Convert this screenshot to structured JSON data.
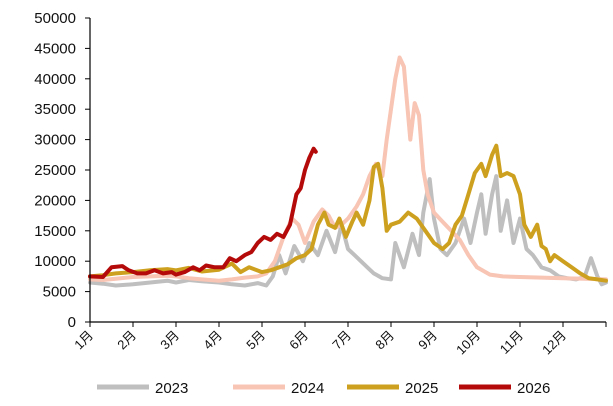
{
  "chart_data": {
    "type": "line",
    "title": "",
    "xlabel": "",
    "ylabel": "",
    "ylim": [
      0,
      50000
    ],
    "y_ticks": [
      0,
      5000,
      10000,
      15000,
      20000,
      25000,
      30000,
      35000,
      40000,
      45000,
      50000
    ],
    "x_ticks": [
      "1月",
      "2月",
      "3月",
      "4月",
      "5月",
      "6月",
      "7月",
      "8月",
      "9月",
      "10月",
      "11月",
      "12月"
    ],
    "x_range_months": [
      1,
      13
    ],
    "legend_position": "bottom",
    "grid": false,
    "series": [
      {
        "name": "2023",
        "color": "#BFBFBF",
        "points": [
          [
            1.0,
            6500
          ],
          [
            1.3,
            6300
          ],
          [
            1.6,
            6000
          ],
          [
            2.0,
            6200
          ],
          [
            2.4,
            6500
          ],
          [
            2.8,
            6800
          ],
          [
            3.0,
            6500
          ],
          [
            3.3,
            6900
          ],
          [
            3.6,
            6700
          ],
          [
            4.0,
            6500
          ],
          [
            4.3,
            6200
          ],
          [
            4.6,
            6000
          ],
          [
            4.9,
            6400
          ],
          [
            5.1,
            6000
          ],
          [
            5.25,
            7500
          ],
          [
            5.4,
            11000
          ],
          [
            5.55,
            8000
          ],
          [
            5.75,
            12500
          ],
          [
            5.95,
            10000
          ],
          [
            6.1,
            13000
          ],
          [
            6.3,
            11000
          ],
          [
            6.5,
            15000
          ],
          [
            6.7,
            11500
          ],
          [
            6.85,
            16000
          ],
          [
            7.0,
            12000
          ],
          [
            7.15,
            11000
          ],
          [
            7.3,
            10000
          ],
          [
            7.45,
            9000
          ],
          [
            7.6,
            8000
          ],
          [
            7.8,
            7200
          ],
          [
            8.0,
            7000
          ],
          [
            8.1,
            13000
          ],
          [
            8.3,
            9000
          ],
          [
            8.5,
            14500
          ],
          [
            8.65,
            11000
          ],
          [
            8.75,
            18000
          ],
          [
            8.9,
            23500
          ],
          [
            9.0,
            17000
          ],
          [
            9.15,
            12000
          ],
          [
            9.3,
            11000
          ],
          [
            9.5,
            13000
          ],
          [
            9.7,
            17000
          ],
          [
            9.85,
            13000
          ],
          [
            10.0,
            18000
          ],
          [
            10.1,
            21000
          ],
          [
            10.2,
            14500
          ],
          [
            10.35,
            21000
          ],
          [
            10.45,
            24000
          ],
          [
            10.55,
            15000
          ],
          [
            10.7,
            20000
          ],
          [
            10.85,
            13000
          ],
          [
            11.0,
            17000
          ],
          [
            11.15,
            12000
          ],
          [
            11.3,
            11000
          ],
          [
            11.5,
            9000
          ],
          [
            11.7,
            8500
          ],
          [
            11.9,
            7500
          ],
          [
            12.1,
            7200
          ],
          [
            12.3,
            7000
          ],
          [
            12.5,
            7400
          ],
          [
            12.65,
            10500
          ],
          [
            12.8,
            7500
          ],
          [
            12.9,
            6200
          ],
          [
            13.0,
            6500
          ]
        ]
      },
      {
        "name": "2024",
        "color": "#F8C4B4",
        "points": [
          [
            1.0,
            7000
          ],
          [
            1.3,
            6900
          ],
          [
            1.6,
            7100
          ],
          [
            2.0,
            7400
          ],
          [
            2.4,
            7500
          ],
          [
            2.8,
            7600
          ],
          [
            3.0,
            7500
          ],
          [
            3.3,
            7200
          ],
          [
            3.6,
            7000
          ],
          [
            4.0,
            6800
          ],
          [
            4.3,
            7000
          ],
          [
            4.6,
            7300
          ],
          [
            4.9,
            7500
          ],
          [
            5.1,
            8000
          ],
          [
            5.3,
            10000
          ],
          [
            5.5,
            14000
          ],
          [
            5.7,
            17000
          ],
          [
            5.85,
            16000
          ],
          [
            6.0,
            13000
          ],
          [
            6.2,
            16500
          ],
          [
            6.4,
            18500
          ],
          [
            6.55,
            17500
          ],
          [
            6.7,
            15500
          ],
          [
            6.85,
            16000
          ],
          [
            7.0,
            17000
          ],
          [
            7.2,
            19000
          ],
          [
            7.35,
            21000
          ],
          [
            7.5,
            24000
          ],
          [
            7.65,
            26000
          ],
          [
            7.8,
            24000
          ],
          [
            7.9,
            30000
          ],
          [
            8.0,
            35000
          ],
          [
            8.1,
            40000
          ],
          [
            8.2,
            43500
          ],
          [
            8.3,
            42000
          ],
          [
            8.35,
            38000
          ],
          [
            8.45,
            30000
          ],
          [
            8.55,
            36000
          ],
          [
            8.65,
            34000
          ],
          [
            8.75,
            25000
          ],
          [
            8.85,
            21000
          ],
          [
            9.0,
            18000
          ],
          [
            9.2,
            16500
          ],
          [
            9.4,
            15000
          ],
          [
            9.6,
            13500
          ],
          [
            9.8,
            11000
          ],
          [
            10.0,
            9000
          ],
          [
            10.3,
            7800
          ],
          [
            10.6,
            7500
          ],
          [
            11.0,
            7400
          ],
          [
            11.5,
            7300
          ],
          [
            12.0,
            7200
          ],
          [
            12.5,
            7100
          ],
          [
            13.0,
            7000
          ]
        ]
      },
      {
        "name": "2025",
        "color": "#CDA11F",
        "points": [
          [
            1.0,
            7500
          ],
          [
            1.3,
            7700
          ],
          [
            1.6,
            8000
          ],
          [
            2.0,
            8200
          ],
          [
            2.4,
            8500
          ],
          [
            2.8,
            8700
          ],
          [
            3.0,
            8500
          ],
          [
            3.3,
            8900
          ],
          [
            3.6,
            8300
          ],
          [
            4.0,
            8600
          ],
          [
            4.3,
            9600
          ],
          [
            4.5,
            8200
          ],
          [
            4.7,
            9000
          ],
          [
            5.0,
            8200
          ],
          [
            5.2,
            8500
          ],
          [
            5.4,
            9000
          ],
          [
            5.6,
            9500
          ],
          [
            5.8,
            10500
          ],
          [
            6.0,
            11000
          ],
          [
            6.15,
            12000
          ],
          [
            6.3,
            16000
          ],
          [
            6.45,
            18000
          ],
          [
            6.55,
            16000
          ],
          [
            6.7,
            15500
          ],
          [
            6.8,
            17000
          ],
          [
            6.95,
            14000
          ],
          [
            7.1,
            16500
          ],
          [
            7.2,
            18000
          ],
          [
            7.35,
            16000
          ],
          [
            7.5,
            20000
          ],
          [
            7.6,
            25500
          ],
          [
            7.7,
            26000
          ],
          [
            7.8,
            22000
          ],
          [
            7.9,
            15000
          ],
          [
            8.0,
            16000
          ],
          [
            8.2,
            16500
          ],
          [
            8.4,
            18000
          ],
          [
            8.6,
            17000
          ],
          [
            8.8,
            15000
          ],
          [
            9.0,
            13000
          ],
          [
            9.2,
            12000
          ],
          [
            9.35,
            13000
          ],
          [
            9.5,
            16000
          ],
          [
            9.65,
            17500
          ],
          [
            9.8,
            21000
          ],
          [
            9.95,
            24500
          ],
          [
            10.1,
            26000
          ],
          [
            10.2,
            24000
          ],
          [
            10.35,
            27500
          ],
          [
            10.45,
            29000
          ],
          [
            10.55,
            24000
          ],
          [
            10.7,
            24500
          ],
          [
            10.85,
            24000
          ],
          [
            11.0,
            21000
          ],
          [
            11.1,
            16000
          ],
          [
            11.25,
            14000
          ],
          [
            11.4,
            16000
          ],
          [
            11.5,
            12500
          ],
          [
            11.6,
            12000
          ],
          [
            11.7,
            10000
          ],
          [
            11.8,
            11000
          ],
          [
            12.0,
            10000
          ],
          [
            12.2,
            9000
          ],
          [
            12.4,
            8000
          ],
          [
            12.6,
            7200
          ],
          [
            12.8,
            7000
          ],
          [
            13.0,
            6800
          ]
        ]
      },
      {
        "name": "2026",
        "color": "#B50A0A",
        "points": [
          [
            1.0,
            7500
          ],
          [
            1.3,
            7400
          ],
          [
            1.5,
            9000
          ],
          [
            1.75,
            9200
          ],
          [
            1.9,
            8500
          ],
          [
            2.1,
            8000
          ],
          [
            2.3,
            8000
          ],
          [
            2.5,
            8500
          ],
          [
            2.7,
            8000
          ],
          [
            2.9,
            8200
          ],
          [
            3.0,
            7800
          ],
          [
            3.2,
            8200
          ],
          [
            3.4,
            9000
          ],
          [
            3.55,
            8500
          ],
          [
            3.7,
            9300
          ],
          [
            3.9,
            9000
          ],
          [
            4.1,
            9000
          ],
          [
            4.25,
            10500
          ],
          [
            4.4,
            10000
          ],
          [
            4.6,
            11000
          ],
          [
            4.75,
            11500
          ],
          [
            4.9,
            13000
          ],
          [
            5.05,
            14000
          ],
          [
            5.2,
            13500
          ],
          [
            5.35,
            14500
          ],
          [
            5.5,
            14000
          ],
          [
            5.65,
            16000
          ],
          [
            5.8,
            21000
          ],
          [
            5.9,
            22000
          ],
          [
            6.0,
            25000
          ],
          [
            6.1,
            27000
          ],
          [
            6.2,
            28500
          ],
          [
            6.25,
            28000
          ]
        ]
      }
    ]
  }
}
